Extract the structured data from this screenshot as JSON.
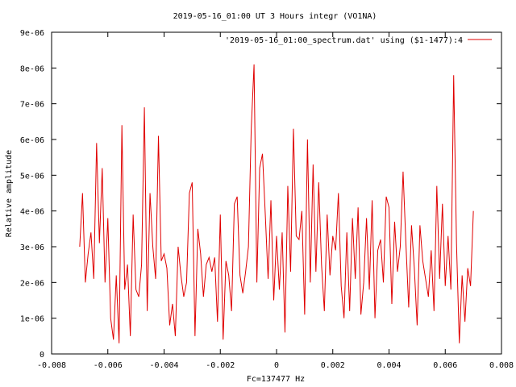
{
  "chart_data": {
    "type": "line",
    "title": "2019-05-16_01:00 UT 3 Hours integr (VO1NA)",
    "xlabel": "Fc=137477 Hz",
    "ylabel": "Relative amplitude",
    "xlim": [
      -0.008,
      0.008
    ],
    "ylim": [
      0,
      9e-06
    ],
    "xticks": [
      -0.008,
      -0.006,
      -0.004,
      -0.002,
      0,
      0.002,
      0.004,
      0.006,
      0.008
    ],
    "xtick_labels": [
      "-0.008",
      "-0.006",
      "-0.004",
      "-0.002",
      "0",
      "0.002",
      "0.004",
      "0.006",
      "0.008"
    ],
    "yticks": [
      0,
      1e-06,
      2e-06,
      3e-06,
      4e-06,
      5e-06,
      6e-06,
      7e-06,
      8e-06,
      9e-06
    ],
    "ytick_labels": [
      "0",
      "1e-06",
      "2e-06",
      "3e-06",
      "4e-06",
      "5e-06",
      "6e-06",
      "7e-06",
      "8e-06",
      "9e-06"
    ],
    "grid": false,
    "legend_position": "top-right",
    "series": [
      {
        "name": "'2019-05-16_01:00_spectrum.dat' using ($1-1477):4",
        "color": "#e00000",
        "x": [
          -0.007,
          -0.0069,
          -0.0068,
          -0.0067,
          -0.0066,
          -0.0065,
          -0.0064,
          -0.0063,
          -0.0062,
          -0.0061,
          -0.006,
          -0.0059,
          -0.0058,
          -0.0057,
          -0.0056,
          -0.0055,
          -0.0054,
          -0.0053,
          -0.0052,
          -0.0051,
          -0.005,
          -0.0049,
          -0.0048,
          -0.0047,
          -0.0046,
          -0.0045,
          -0.0044,
          -0.0043,
          -0.0042,
          -0.0041,
          -0.004,
          -0.0039,
          -0.0038,
          -0.0037,
          -0.0036,
          -0.0035,
          -0.0034,
          -0.0033,
          -0.0032,
          -0.0031,
          -0.003,
          -0.0029,
          -0.0028,
          -0.0027,
          -0.0026,
          -0.0025,
          -0.0024,
          -0.0023,
          -0.0022,
          -0.0021,
          -0.002,
          -0.0019,
          -0.0018,
          -0.0017,
          -0.0016,
          -0.0015,
          -0.0014,
          -0.0013,
          -0.0012,
          -0.0011,
          -0.001,
          -0.0009,
          -0.0008,
          -0.0007,
          -0.0006,
          -0.0005,
          -0.0004,
          -0.0003,
          -0.0002,
          -0.0001,
          0,
          0.0001,
          0.0002,
          0.0003,
          0.0004,
          0.0005,
          0.0006,
          0.0007,
          0.0008,
          0.0009,
          0.001,
          0.0011,
          0.0012,
          0.0013,
          0.0014,
          0.0015,
          0.0016,
          0.0017,
          0.0018,
          0.0019,
          0.002,
          0.0021,
          0.0022,
          0.0023,
          0.0024,
          0.0025,
          0.0026,
          0.0027,
          0.0028,
          0.0029,
          0.003,
          0.0031,
          0.0032,
          0.0033,
          0.0034,
          0.0035,
          0.0036,
          0.0037,
          0.0038,
          0.0039,
          0.004,
          0.0041,
          0.0042,
          0.0043,
          0.0044,
          0.0045,
          0.0046,
          0.0047,
          0.0048,
          0.0049,
          0.005,
          0.0051,
          0.0052,
          0.0053,
          0.0054,
          0.0055,
          0.0056,
          0.0057,
          0.0058,
          0.0059,
          0.006,
          0.0061,
          0.0062,
          0.0063,
          0.0064,
          0.0065,
          0.0066,
          0.0067,
          0.0068,
          0.0069,
          0.007
        ],
        "y": [
          3e-06,
          4.5e-06,
          2e-06,
          2.8e-06,
          3.4e-06,
          2.1e-06,
          5.9e-06,
          3.1e-06,
          5.2e-06,
          2e-06,
          3.8e-06,
          1e-06,
          4e-07,
          2.2e-06,
          3e-07,
          6.4e-06,
          1.8e-06,
          2.5e-06,
          5e-07,
          3.9e-06,
          1.8e-06,
          1.6e-06,
          2.5e-06,
          6.9e-06,
          1.2e-06,
          4.5e-06,
          3e-06,
          2.1e-06,
          6.1e-06,
          2.6e-06,
          2.8e-06,
          2.4e-06,
          8e-07,
          1.4e-06,
          5e-07,
          3e-06,
          2.2e-06,
          1.6e-06,
          2e-06,
          4.5e-06,
          4.8e-06,
          5e-07,
          3.5e-06,
          2.8e-06,
          1.6e-06,
          2.5e-06,
          2.7e-06,
          2.3e-06,
          2.7e-06,
          9e-07,
          3.9e-06,
          4e-07,
          2.6e-06,
          2.2e-06,
          1.2e-06,
          4.2e-06,
          4.4e-06,
          2.2e-06,
          1.7e-06,
          2.3e-06,
          3e-06,
          6.3e-06,
          8.1e-06,
          2e-06,
          5.2e-06,
          5.6e-06,
          3.9e-06,
          2.1e-06,
          4.3e-06,
          1.5e-06,
          3.3e-06,
          1.8e-06,
          3.4e-06,
          6e-07,
          4.7e-06,
          2.3e-06,
          6.3e-06,
          3.3e-06,
          3.2e-06,
          4e-06,
          1.1e-06,
          6e-06,
          2e-06,
          5.3e-06,
          2.3e-06,
          4.8e-06,
          2.5e-06,
          1.2e-06,
          3.9e-06,
          2.2e-06,
          3.3e-06,
          2.9e-06,
          4.5e-06,
          1.9e-06,
          1e-06,
          3.4e-06,
          1.2e-06,
          3.8e-06,
          2.1e-06,
          4.1e-06,
          1.1e-06,
          2e-06,
          3.8e-06,
          1.8e-06,
          4.3e-06,
          1e-06,
          2.9e-06,
          3.2e-06,
          2e-06,
          4.4e-06,
          4.1e-06,
          1.4e-06,
          3.7e-06,
          2.3e-06,
          3e-06,
          5.1e-06,
          3.1e-06,
          1.3e-06,
          3.6e-06,
          2.4e-06,
          8e-07,
          3.6e-06,
          2.6e-06,
          2.1e-06,
          1.6e-06,
          2.9e-06,
          1.2e-06,
          4.7e-06,
          2.1e-06,
          4.2e-06,
          1.9e-06,
          3.3e-06,
          1.8e-06,
          7.8e-06,
          3.1e-06,
          3e-07,
          2.2e-06,
          9e-07,
          2.4e-06,
          1.9e-06,
          4e-06
        ]
      }
    ]
  }
}
